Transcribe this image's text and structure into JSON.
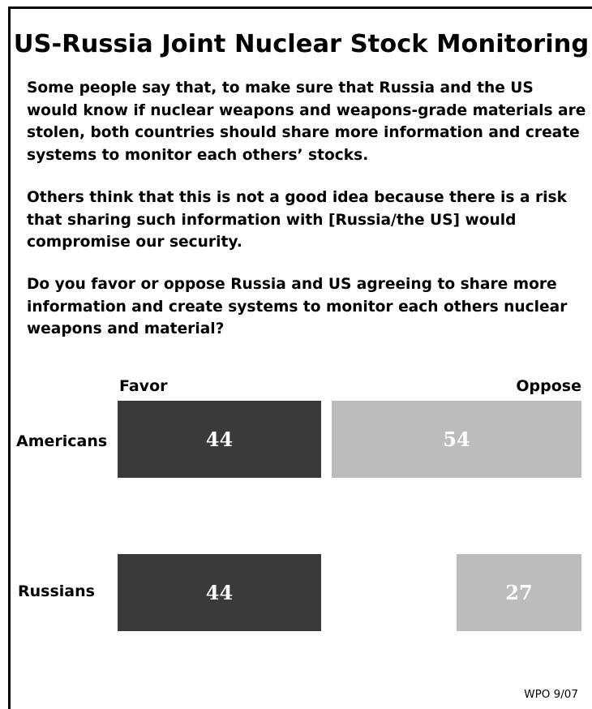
{
  "title": "US-Russia Joint Nuclear Stock Monitoring",
  "paragraphs": [
    "Some people say that, to make sure that Russia and the US would know if nuclear weapons and weapons-grade materials are stolen, both countries should share more information and create systems to monitor each others’ stocks.",
    "Others think that this is not a good idea because there is a risk that sharing such information with [Russia/the US] would compromise our security.",
    "Do you favor or oppose Russia and US agreeing to share more information and create systems to monitor each others nuclear weapons and material?"
  ],
  "source": "WPO 9/07",
  "colors": {
    "favor": "#3a3a3a",
    "oppose": "#bcbcbc"
  },
  "chart_data": {
    "type": "bar",
    "orientation": "horizontal",
    "categories": [
      "Americans",
      "Russians"
    ],
    "column_headers": {
      "favor": "Favor",
      "oppose": "Oppose"
    },
    "series": [
      {
        "name": "Favor",
        "values": [
          44,
          44
        ]
      },
      {
        "name": "Oppose",
        "values": [
          54,
          27
        ]
      }
    ]
  }
}
